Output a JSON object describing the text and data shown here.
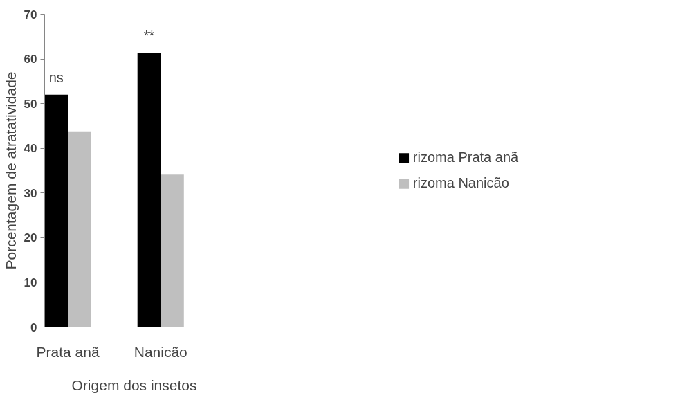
{
  "chart_data": {
    "type": "bar",
    "xlabel": "Origem dos insetos",
    "ylabel": "Porcentagem de atratatividade",
    "categories": [
      "Prata anã",
      "Nanicão"
    ],
    "series": [
      {
        "name": "rizoma Prata anã",
        "color": "#000000",
        "values": [
          52,
          61.4
        ]
      },
      {
        "name": "rizoma Nanicão",
        "color": "#bfbfbf",
        "values": [
          43.8,
          34.1
        ]
      }
    ],
    "ylim": [
      0,
      70
    ],
    "yticks": [
      0,
      10,
      20,
      30,
      40,
      50,
      60,
      70
    ],
    "annotations": [
      {
        "text": "ns",
        "x": "Prata anã",
        "y": 52
      },
      {
        "text": "**",
        "x": "Nanicão",
        "y": 61.4
      }
    ],
    "grid": false,
    "legend": "right"
  }
}
